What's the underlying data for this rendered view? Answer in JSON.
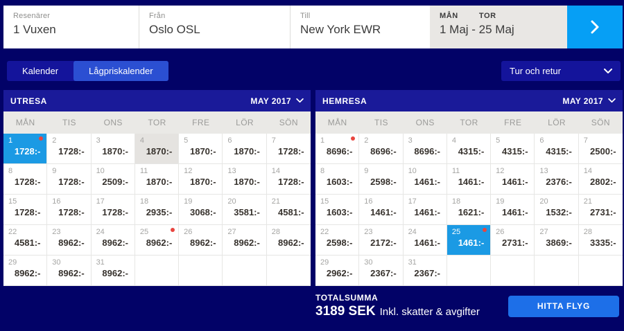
{
  "search_bar": {
    "passengers": {
      "label": "Resenärer",
      "value": "1 Vuxen"
    },
    "from": {
      "label": "Från",
      "value": "Oslo OSL"
    },
    "to": {
      "label": "Till",
      "value": "New York EWR"
    },
    "dates": {
      "out_day_label": "MÅN",
      "return_day_label": "TOR",
      "value": "1 Maj - 25 Maj"
    }
  },
  "tabs": {
    "calendar": "Kalender",
    "low_price_calendar": "Lågpriskalender"
  },
  "trip_type": {
    "value": "Tur och retur"
  },
  "calendars": [
    {
      "title": "UTRESA",
      "month": "MAY 2017",
      "day_headers": [
        "MÅN",
        "TIS",
        "ONS",
        "TOR",
        "FRE",
        "LÖR",
        "SÖN"
      ],
      "weeks": [
        [
          {
            "day": 1,
            "price": "1728:-",
            "selected": true,
            "dot": true
          },
          {
            "day": 2,
            "price": "1728:-"
          },
          {
            "day": 3,
            "price": "1870:-"
          },
          {
            "day": 4,
            "price": "1870:-",
            "muted": true
          },
          {
            "day": 5,
            "price": "1870:-"
          },
          {
            "day": 6,
            "price": "1870:-"
          },
          {
            "day": 7,
            "price": "1728:-"
          }
        ],
        [
          {
            "day": 8,
            "price": "1728:-"
          },
          {
            "day": 9,
            "price": "1728:-"
          },
          {
            "day": 10,
            "price": "2509:-"
          },
          {
            "day": 11,
            "price": "1870:-"
          },
          {
            "day": 12,
            "price": "1870:-"
          },
          {
            "day": 13,
            "price": "1870:-"
          },
          {
            "day": 14,
            "price": "1728:-"
          }
        ],
        [
          {
            "day": 15,
            "price": "1728:-"
          },
          {
            "day": 16,
            "price": "1728:-"
          },
          {
            "day": 17,
            "price": "1728:-"
          },
          {
            "day": 18,
            "price": "2935:-"
          },
          {
            "day": 19,
            "price": "3068:-"
          },
          {
            "day": 20,
            "price": "3581:-"
          },
          {
            "day": 21,
            "price": "4581:-"
          }
        ],
        [
          {
            "day": 22,
            "price": "4581:-"
          },
          {
            "day": 23,
            "price": "8962:-"
          },
          {
            "day": 24,
            "price": "8962:-"
          },
          {
            "day": 25,
            "price": "8962:-",
            "dot": true
          },
          {
            "day": 26,
            "price": "8962:-"
          },
          {
            "day": 27,
            "price": "8962:-"
          },
          {
            "day": 28,
            "price": "8962:-"
          }
        ],
        [
          {
            "day": 29,
            "price": "8962:-"
          },
          {
            "day": 30,
            "price": "8962:-"
          },
          {
            "day": 31,
            "price": "8962:-"
          },
          {},
          {},
          {},
          {}
        ]
      ]
    },
    {
      "title": "HEMRESA",
      "month": "MAY 2017",
      "day_headers": [
        "MÅN",
        "TIS",
        "ONS",
        "TOR",
        "FRE",
        "LÖR",
        "SÖN"
      ],
      "weeks": [
        [
          {
            "day": 1,
            "price": "8696:-",
            "dot": true
          },
          {
            "day": 2,
            "price": "8696:-"
          },
          {
            "day": 3,
            "price": "8696:-"
          },
          {
            "day": 4,
            "price": "4315:-"
          },
          {
            "day": 5,
            "price": "4315:-"
          },
          {
            "day": 6,
            "price": "4315:-"
          },
          {
            "day": 7,
            "price": "2500:-"
          }
        ],
        [
          {
            "day": 8,
            "price": "1603:-"
          },
          {
            "day": 9,
            "price": "2598:-"
          },
          {
            "day": 10,
            "price": "1461:-"
          },
          {
            "day": 11,
            "price": "1461:-"
          },
          {
            "day": 12,
            "price": "1461:-"
          },
          {
            "day": 13,
            "price": "2376:-"
          },
          {
            "day": 14,
            "price": "2802:-"
          }
        ],
        [
          {
            "day": 15,
            "price": "1603:-"
          },
          {
            "day": 16,
            "price": "1461:-"
          },
          {
            "day": 17,
            "price": "1461:-"
          },
          {
            "day": 18,
            "price": "1621:-"
          },
          {
            "day": 19,
            "price": "1461:-"
          },
          {
            "day": 20,
            "price": "1532:-"
          },
          {
            "day": 21,
            "price": "2731:-"
          }
        ],
        [
          {
            "day": 22,
            "price": "2598:-"
          },
          {
            "day": 23,
            "price": "2172:-"
          },
          {
            "day": 24,
            "price": "1461:-"
          },
          {
            "day": 25,
            "price": "1461:-",
            "selected": true,
            "dot": true
          },
          {
            "day": 26,
            "price": "2731:-"
          },
          {
            "day": 27,
            "price": "3869:-"
          },
          {
            "day": 28,
            "price": "3335:-"
          }
        ],
        [
          {
            "day": 29,
            "price": "2962:-"
          },
          {
            "day": 30,
            "price": "2367:-"
          },
          {
            "day": 31,
            "price": "2367:-"
          },
          {},
          {},
          {},
          {}
        ]
      ]
    }
  ],
  "footer": {
    "total_label": "TOTALSUMMA",
    "total_value": "3189 SEK",
    "total_note": "Inkl. skatter & avgifter",
    "cta_label": "HITTA FLYG"
  },
  "colors": {
    "page_background": "#020267",
    "panel_blue": "#14149b",
    "calendar_header_blue": "#1a1a99",
    "selected_tab_blue": "#2b4fd2",
    "selected_day_blue": "#1b9ae4",
    "search_arrow_blue": "#069ff5",
    "cta_blue": "#1d6fe8",
    "notice_dot_red": "#e8453f"
  }
}
